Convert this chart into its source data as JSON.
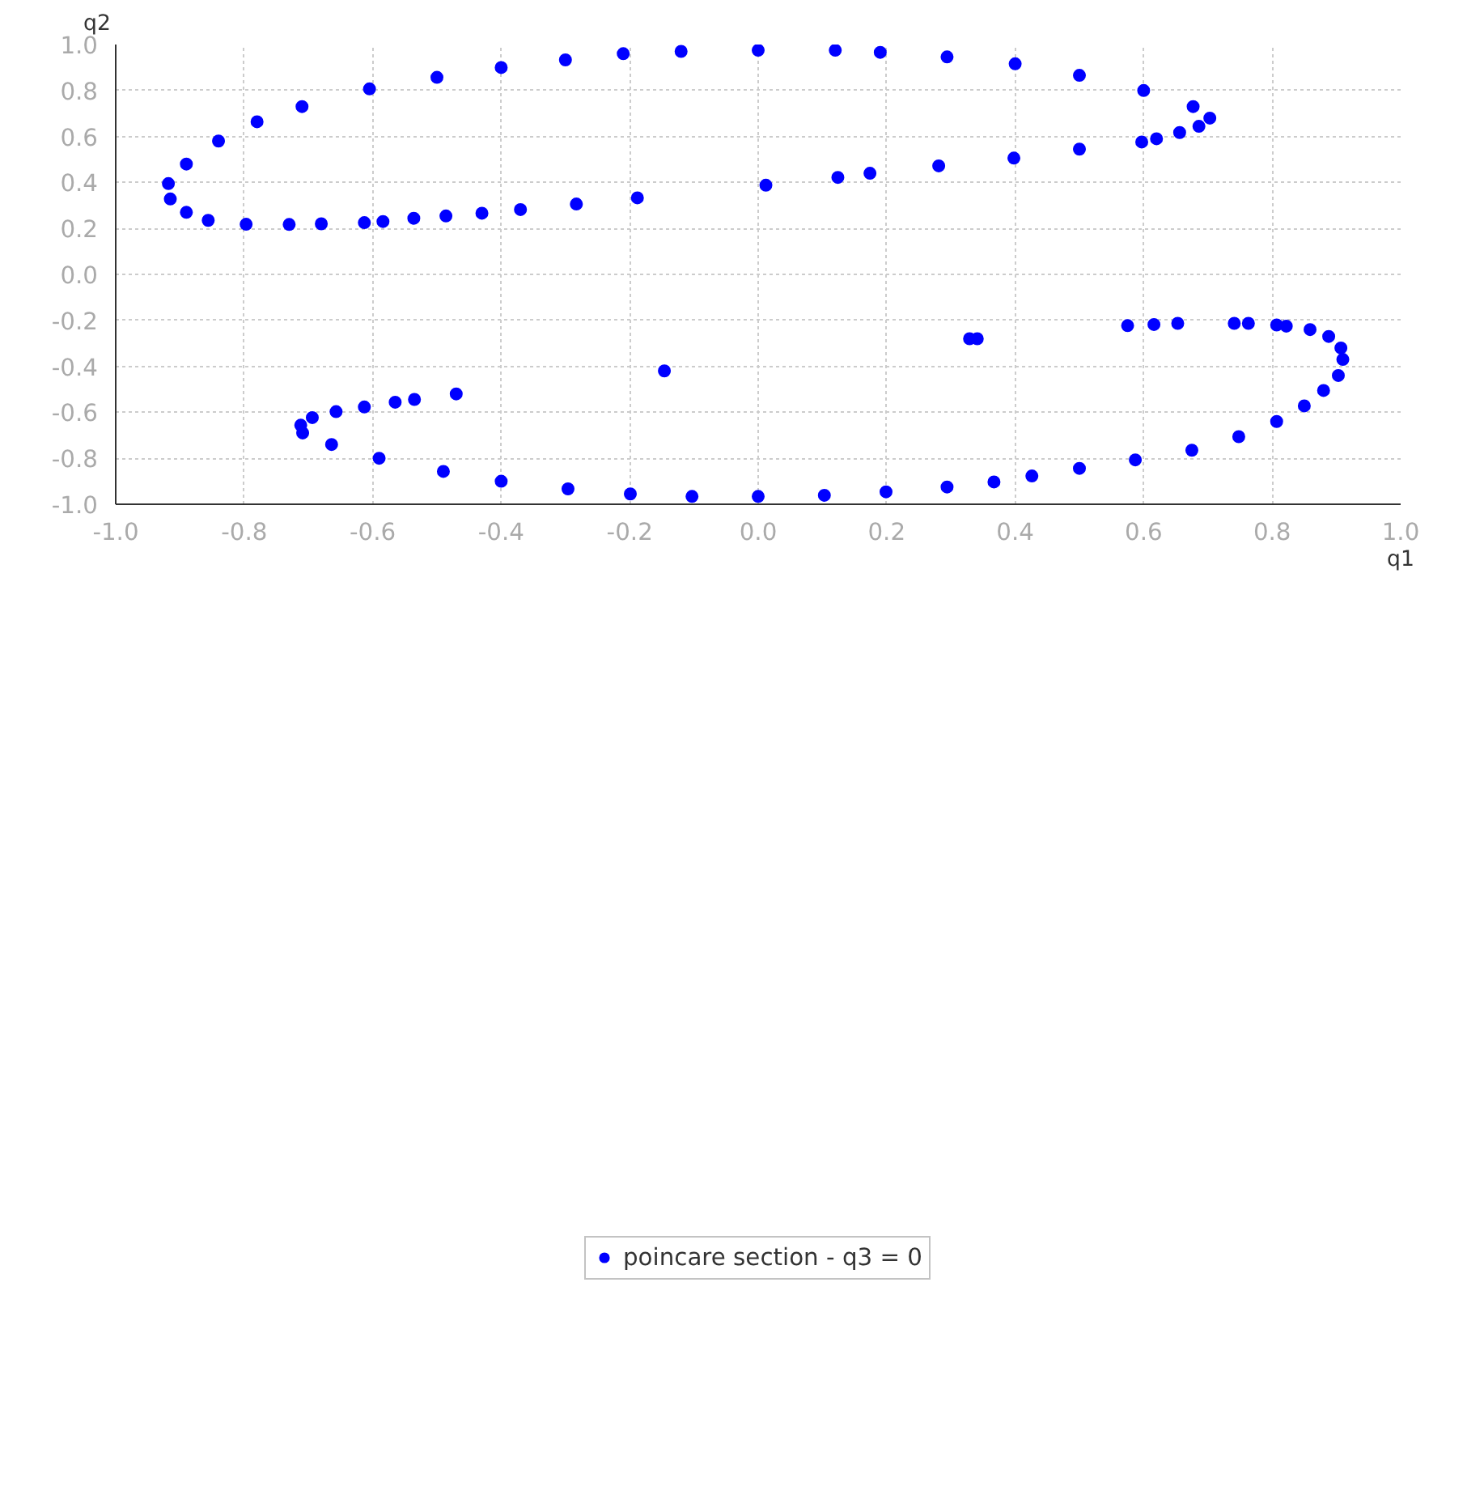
{
  "chart_data": {
    "type": "scatter",
    "xlabel": "q1",
    "ylabel": "q2",
    "xlim": [
      -1.0,
      1.0
    ],
    "ylim": [
      -1.0,
      1.0
    ],
    "xticks": [
      {
        "value": -1.0,
        "label": "-1.0"
      },
      {
        "value": -0.8,
        "label": "-0.8"
      },
      {
        "value": -0.6,
        "label": "-0.6"
      },
      {
        "value": -0.4,
        "label": "-0.4"
      },
      {
        "value": -0.2,
        "label": "-0.2"
      },
      {
        "value": 0.0,
        "label": "0.0"
      },
      {
        "value": 0.2,
        "label": "0.2"
      },
      {
        "value": 0.4,
        "label": "0.4"
      },
      {
        "value": 0.6,
        "label": "0.6"
      },
      {
        "value": 0.8,
        "label": "0.8"
      },
      {
        "value": 1.0,
        "label": "1.0"
      }
    ],
    "yticks": [
      {
        "value": -1.0,
        "label": "-1.0"
      },
      {
        "value": -0.8,
        "label": "-0.8"
      },
      {
        "value": -0.6,
        "label": "-0.6"
      },
      {
        "value": -0.4,
        "label": "-0.4"
      },
      {
        "value": -0.2,
        "label": "-0.2"
      },
      {
        "value": 0.0,
        "label": "0.0"
      },
      {
        "value": 0.2,
        "label": "0.2"
      },
      {
        "value": 0.4,
        "label": "0.4"
      },
      {
        "value": 0.6,
        "label": "0.6"
      },
      {
        "value": 0.8,
        "label": "0.8"
      },
      {
        "value": 1.0,
        "label": "1.0"
      }
    ],
    "grid": true,
    "legend": "bottom",
    "marker": "circle",
    "series": [
      {
        "name": "poincare section - q3 = 0",
        "color": "#0000ff",
        "x": [
          0.703,
          0.677,
          0.6,
          0.5,
          0.4,
          0.294,
          0.19,
          0.12,
          0.0,
          -0.12,
          -0.21,
          -0.3,
          -0.4,
          -0.5,
          -0.605,
          -0.71,
          -0.78,
          -0.84,
          -0.89,
          -0.918,
          -0.915,
          -0.89,
          -0.856,
          -0.797,
          -0.73,
          -0.68,
          -0.613,
          -0.584,
          -0.536,
          -0.486,
          -0.43,
          -0.37,
          -0.283,
          -0.188,
          0.012,
          0.124,
          0.174,
          0.281,
          0.398,
          0.5,
          0.597,
          0.62,
          0.656,
          0.686,
          0.575,
          0.616,
          0.653,
          0.741,
          0.763,
          0.807,
          0.822,
          0.859,
          0.888,
          0.907,
          0.91,
          0.903,
          0.88,
          0.85,
          0.807,
          0.748,
          0.675,
          0.587,
          0.5,
          0.426,
          0.367,
          0.294,
          0.199,
          0.103,
          0.0,
          -0.103,
          -0.199,
          -0.296,
          -0.4,
          -0.49,
          -0.59,
          -0.664,
          -0.709,
          -0.712,
          -0.694,
          -0.657,
          -0.613,
          -0.565,
          -0.535,
          -0.47,
          -0.146,
          0.329,
          0.341
        ],
        "values": [
          0.68,
          0.73,
          0.8,
          0.866,
          0.916,
          0.946,
          0.966,
          0.975,
          0.975,
          0.97,
          0.96,
          0.933,
          0.9,
          0.857,
          0.807,
          0.73,
          0.664,
          0.58,
          0.48,
          0.395,
          0.328,
          0.27,
          0.235,
          0.218,
          0.217,
          0.22,
          0.225,
          0.23,
          0.244,
          0.254,
          0.266,
          0.282,
          0.306,
          0.333,
          0.388,
          0.422,
          0.44,
          0.472,
          0.506,
          0.545,
          0.576,
          0.59,
          0.617,
          0.644,
          -0.223,
          -0.218,
          -0.213,
          -0.213,
          -0.213,
          -0.22,
          -0.225,
          -0.24,
          -0.27,
          -0.32,
          -0.37,
          -0.44,
          -0.505,
          -0.572,
          -0.64,
          -0.706,
          -0.765,
          -0.807,
          -0.844,
          -0.877,
          -0.903,
          -0.925,
          -0.946,
          -0.961,
          -0.966,
          -0.966,
          -0.955,
          -0.933,
          -0.9,
          -0.857,
          -0.8,
          -0.74,
          -0.69,
          -0.656,
          -0.623,
          -0.597,
          -0.577,
          -0.556,
          -0.544,
          -0.52,
          -0.42,
          -0.28,
          -0.28
        ]
      }
    ]
  }
}
